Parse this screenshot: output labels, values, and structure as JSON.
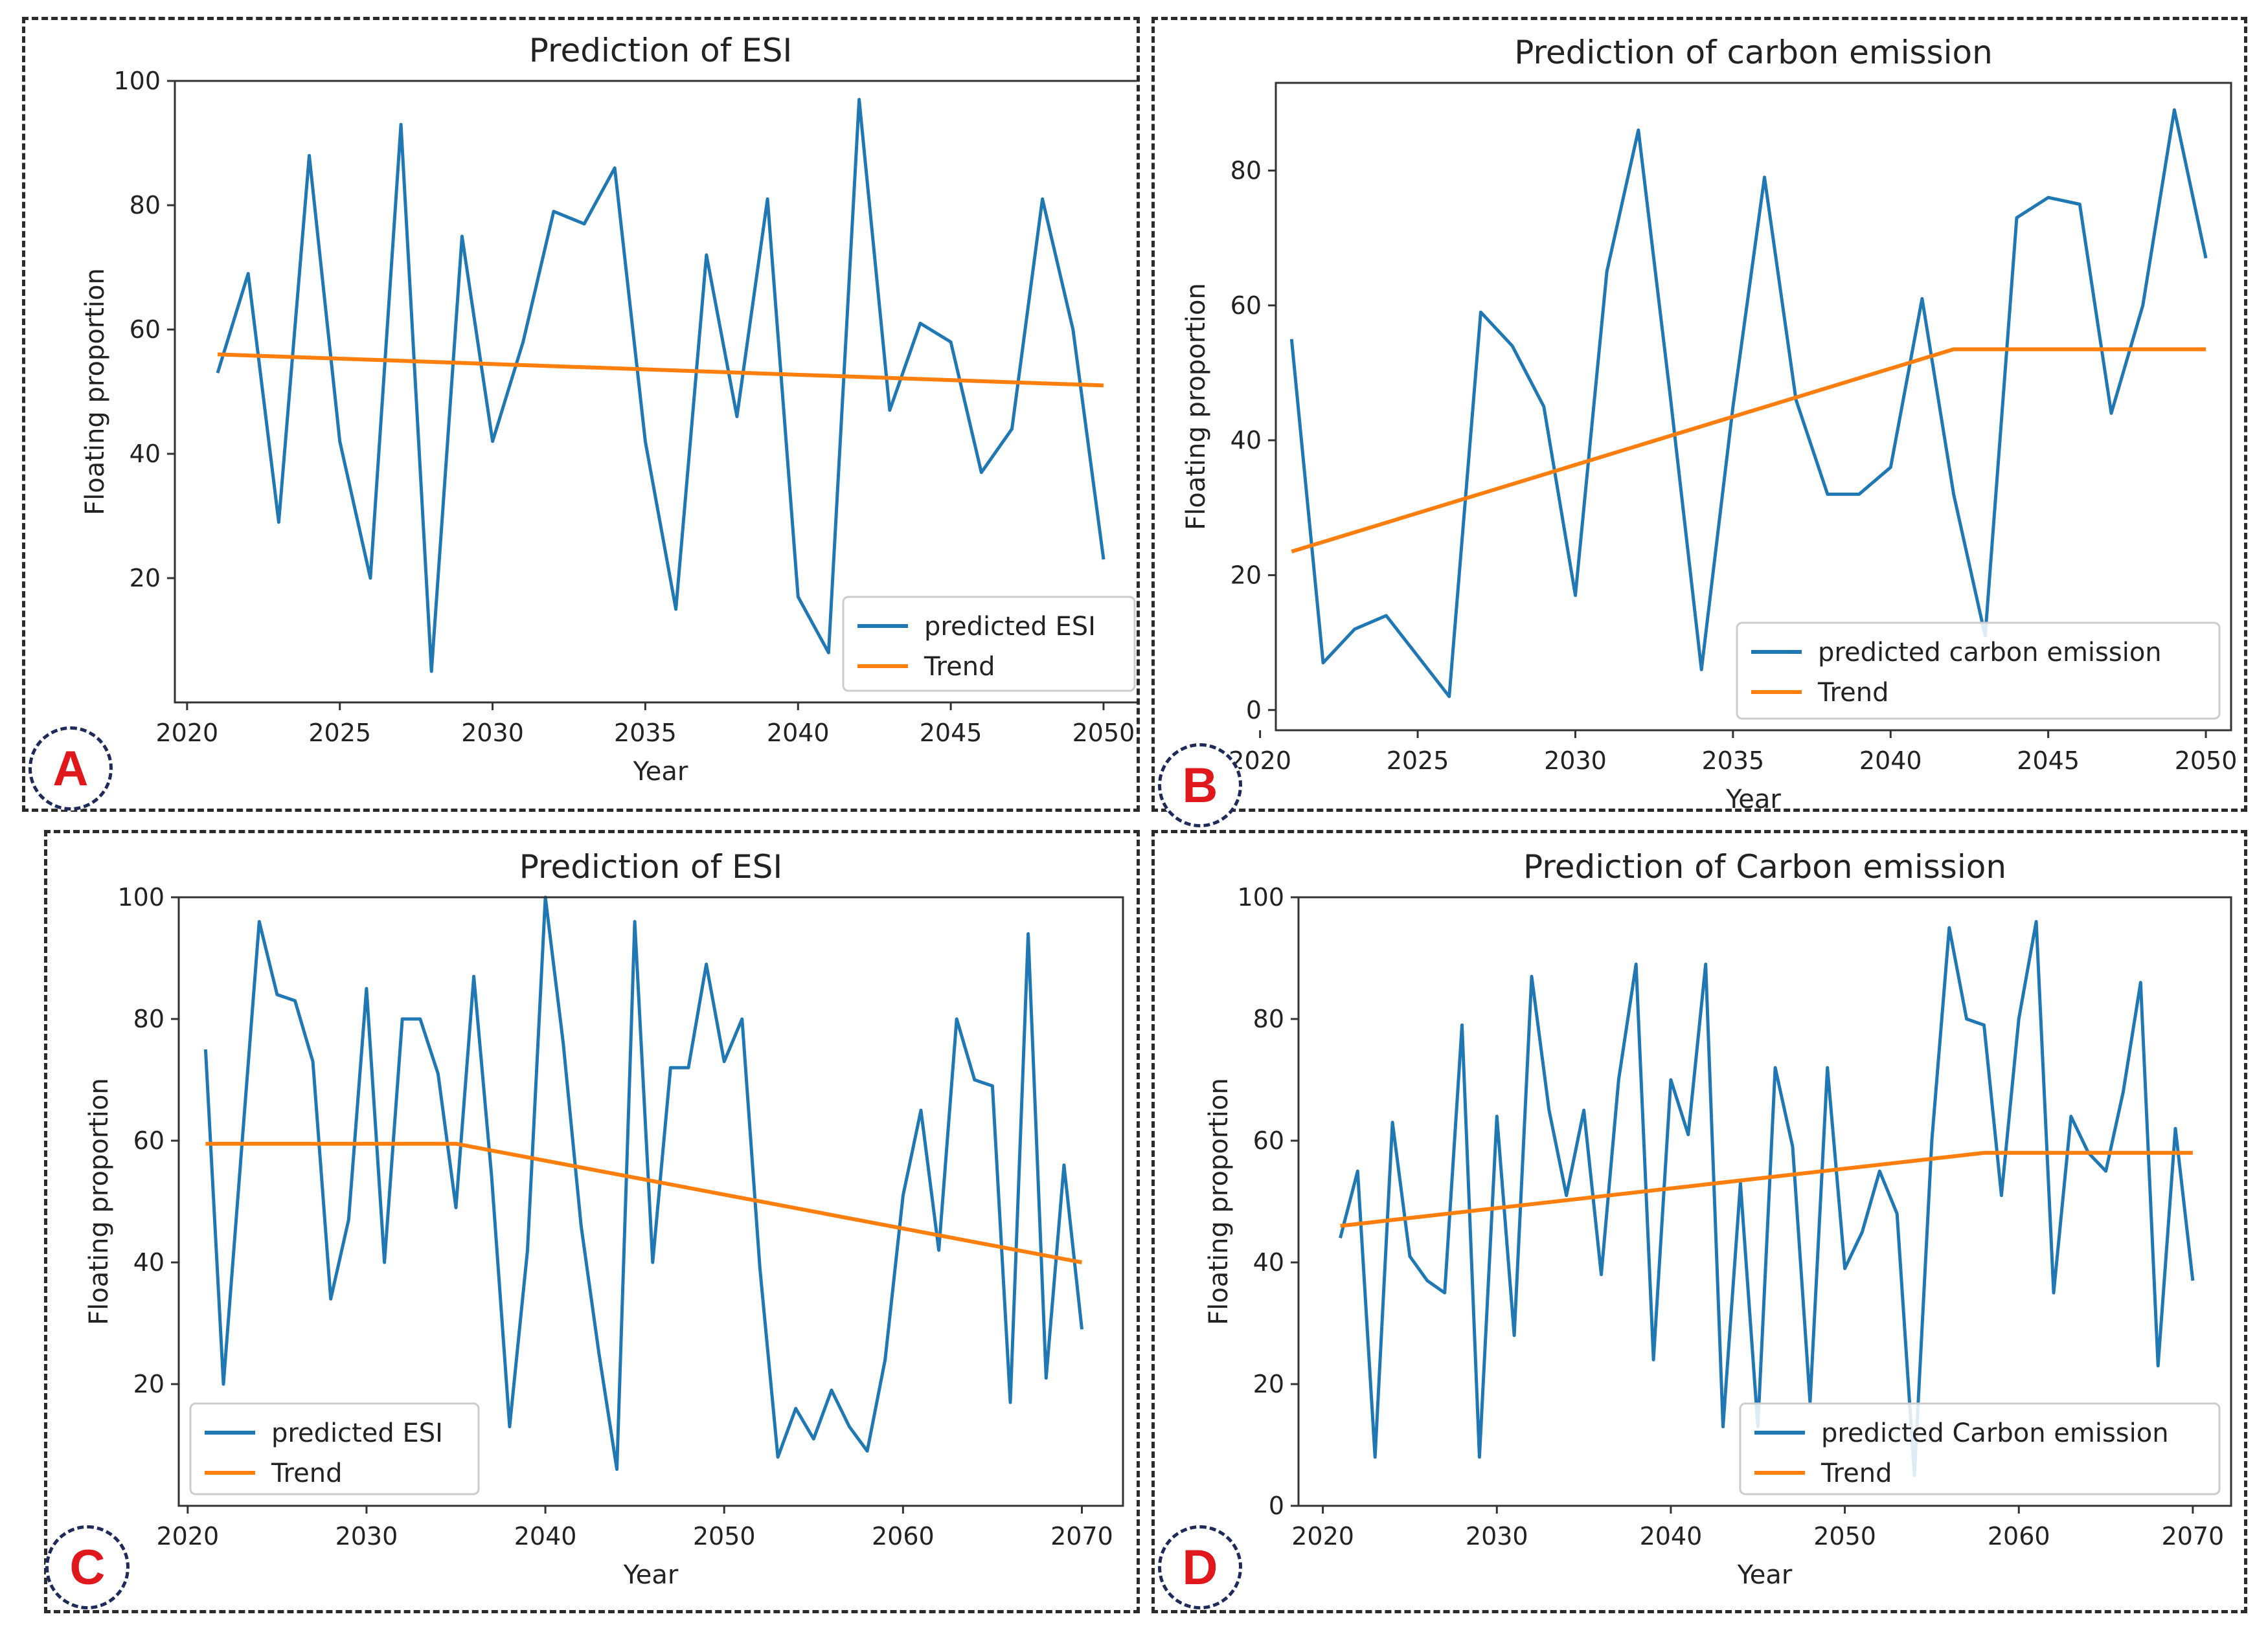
{
  "colors": {
    "series": "#1f77b4",
    "trend": "#ff7f0e",
    "axis": "#333333",
    "badge_text": "#e0171b"
  },
  "chart_data": [
    {
      "label": "A",
      "type": "line",
      "title": "Prediction of ESI",
      "xlabel": "Year",
      "ylabel": "Floating proportion",
      "xlim": [
        2019.6,
        2051.4
      ],
      "ylim": [
        0,
        100
      ],
      "xticks": [
        2020,
        2025,
        2030,
        2035,
        2040,
        2045,
        2050
      ],
      "yticks": [
        20,
        40,
        60,
        80,
        100
      ],
      "legend_position": "bottom-right",
      "series": [
        {
          "name": "predicted ESI",
          "color_key": "series",
          "x": [
            2021,
            2022,
            2023,
            2024,
            2025,
            2026,
            2027,
            2028,
            2029,
            2030,
            2031,
            2032,
            2033,
            2034,
            2035,
            2036,
            2037,
            2038,
            2039,
            2040,
            2041,
            2042,
            2043,
            2044,
            2045,
            2046,
            2047,
            2048,
            2049,
            2050
          ],
          "values": [
            53,
            69,
            29,
            88,
            42,
            20,
            93,
            5,
            75,
            42,
            58,
            79,
            77,
            86,
            42,
            15,
            72,
            46,
            81,
            17,
            8,
            97,
            47,
            61,
            58,
            37,
            44,
            81,
            60,
            23
          ]
        },
        {
          "name": "Trend",
          "color_key": "trend",
          "x": [
            2021,
            2050
          ],
          "values": [
            56,
            51
          ]
        }
      ]
    },
    {
      "label": "B",
      "type": "line",
      "title": "Prediction of carbon emission",
      "xlabel": "Year",
      "ylabel": "Floating proportion",
      "xlim": [
        2020.5,
        2050.8
      ],
      "ylim": [
        -3,
        93
      ],
      "xticks": [
        2020,
        2025,
        2030,
        2035,
        2040,
        2045,
        2050
      ],
      "yticks": [
        0,
        20,
        40,
        60,
        80
      ],
      "legend_position": "bottom-right",
      "series": [
        {
          "name": "predicted carbon emission",
          "color_key": "series",
          "x": [
            2021,
            2022,
            2023,
            2024,
            2025,
            2026,
            2027,
            2028,
            2029,
            2030,
            2031,
            2032,
            2033,
            2034,
            2035,
            2036,
            2037,
            2038,
            2039,
            2040,
            2041,
            2042,
            2043,
            2044,
            2045,
            2046,
            2047,
            2048,
            2049,
            2050
          ],
          "values": [
            55,
            7,
            12,
            14,
            8,
            2,
            59,
            54,
            45,
            17,
            65,
            86,
            47,
            6,
            45,
            79,
            46,
            32,
            32,
            36,
            61,
            32,
            11,
            73,
            76,
            75,
            44,
            60,
            89,
            67
          ]
        },
        {
          "name": "Trend",
          "color_key": "trend",
          "x": [
            2021,
            2042,
            2050
          ],
          "values": [
            23.5,
            53.5,
            53.5
          ]
        }
      ]
    },
    {
      "label": "C",
      "type": "line",
      "title": "Prediction of ESI",
      "xlabel": "Year",
      "ylabel": "Floating proportion",
      "xlim": [
        2019.5,
        2072.3
      ],
      "ylim": [
        0,
        100
      ],
      "xticks": [
        2020,
        2030,
        2040,
        2050,
        2060,
        2070
      ],
      "yticks": [
        20,
        40,
        60,
        80,
        100
      ],
      "legend_position": "bottom-left",
      "series": [
        {
          "name": "predicted ESI",
          "color_key": "series",
          "x": [
            2021,
            2022,
            2023,
            2024,
            2025,
            2026,
            2027,
            2028,
            2029,
            2030,
            2031,
            2032,
            2033,
            2034,
            2035,
            2036,
            2037,
            2038,
            2039,
            2040,
            2041,
            2042,
            2043,
            2044,
            2045,
            2046,
            2047,
            2048,
            2049,
            2050,
            2051,
            2052,
            2053,
            2054,
            2055,
            2056,
            2057,
            2058,
            2059,
            2060,
            2061,
            2062,
            2063,
            2064,
            2065,
            2066,
            2067,
            2068,
            2069,
            2070
          ],
          "values": [
            75,
            20,
            58,
            96,
            84,
            83,
            73,
            34,
            47,
            85,
            40,
            80,
            80,
            71,
            49,
            87,
            54,
            13,
            42,
            100,
            76,
            46,
            25,
            6,
            96,
            40,
            72,
            72,
            89,
            73,
            80,
            39,
            8,
            16,
            11,
            19,
            13,
            9,
            24,
            51,
            65,
            42,
            80,
            70,
            69,
            17,
            94,
            21,
            56,
            29
          ]
        },
        {
          "name": "Trend",
          "color_key": "trend",
          "x": [
            2021,
            2035,
            2070
          ],
          "values": [
            59.5,
            59.5,
            40
          ]
        }
      ]
    },
    {
      "label": "D",
      "type": "line",
      "title": "Prediction of Carbon emission",
      "xlabel": "Year",
      "ylabel": "Floating proportion",
      "xlim": [
        2018.6,
        2072.2
      ],
      "ylim": [
        0,
        100
      ],
      "xticks": [
        2020,
        2030,
        2040,
        2050,
        2060,
        2070
      ],
      "yticks": [
        0,
        20,
        40,
        60,
        80,
        100
      ],
      "legend_position": "bottom-right",
      "series": [
        {
          "name": "predicted Carbon emission",
          "color_key": "series",
          "x": [
            2021,
            2022,
            2023,
            2024,
            2025,
            2026,
            2027,
            2028,
            2029,
            2030,
            2031,
            2032,
            2033,
            2034,
            2035,
            2036,
            2037,
            2038,
            2039,
            2040,
            2041,
            2042,
            2043,
            2044,
            2045,
            2046,
            2047,
            2048,
            2049,
            2050,
            2051,
            2052,
            2053,
            2054,
            2055,
            2056,
            2057,
            2058,
            2059,
            2060,
            2061,
            2062,
            2063,
            2064,
            2065,
            2066,
            2067,
            2068,
            2069,
            2070
          ],
          "values": [
            44,
            55,
            8,
            63,
            41,
            37,
            35,
            79,
            8,
            64,
            28,
            87,
            65,
            51,
            65,
            38,
            70,
            89,
            24,
            70,
            61,
            89,
            13,
            53,
            13,
            72,
            59,
            17,
            72,
            39,
            45,
            55,
            48,
            5,
            60,
            95,
            80,
            79,
            51,
            80,
            96,
            35,
            64,
            58,
            55,
            68,
            86,
            23,
            62,
            37
          ]
        },
        {
          "name": "Trend",
          "color_key": "trend",
          "x": [
            2021,
            2058,
            2070
          ],
          "values": [
            46,
            58,
            58
          ]
        }
      ]
    }
  ]
}
